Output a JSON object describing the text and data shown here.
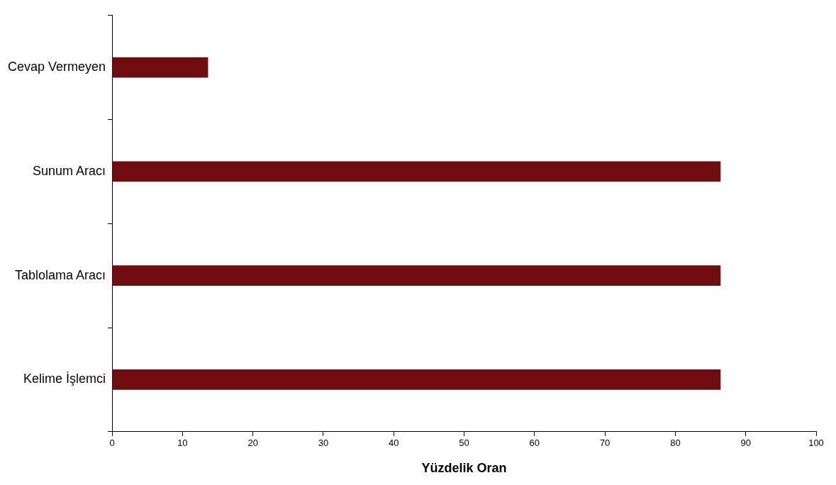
{
  "chart_data": {
    "type": "bar",
    "orientation": "horizontal",
    "xlabel": "Yüzdelik Oran",
    "categories": [
      "Cevap Vermeyen",
      "Sunum Aracı",
      "Tablolama Aracı",
      "Kelime İşlemci"
    ],
    "values": [
      13.6,
      86.4,
      86.4,
      86.4
    ],
    "color": "#6e0c10",
    "xlim": [
      0,
      100
    ],
    "xticks": [
      0,
      10,
      20,
      30,
      40,
      50,
      60,
      70,
      80,
      90,
      100
    ],
    "grid": false,
    "legend": false
  }
}
